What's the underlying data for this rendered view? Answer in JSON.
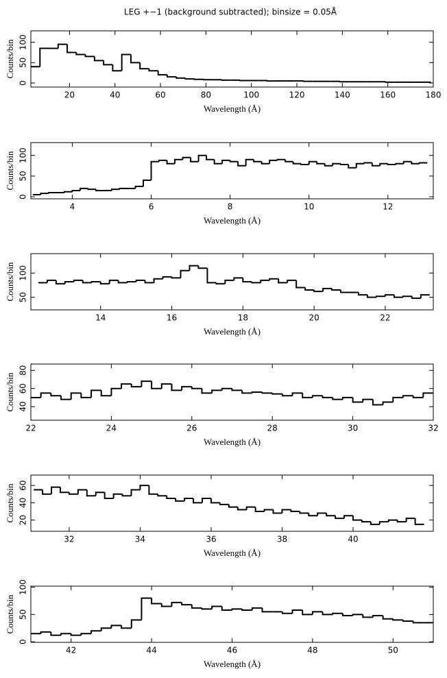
{
  "title": "LEG +−1 (background subtracted); binsize = 0.05Å",
  "chart_data": [
    {
      "type": "histogram",
      "xlabel": "Wavelength (Å)",
      "ylabel": "Counts/bin",
      "color": "#000000",
      "xlim": [
        3,
        180
      ],
      "ylim": [
        -10,
        128
      ],
      "xticks": [
        20,
        40,
        60,
        80,
        100,
        120,
        140,
        160,
        180
      ],
      "yticks": [
        0,
        50,
        100
      ],
      "bins": [
        3,
        7,
        11,
        15,
        19,
        23,
        27,
        31,
        35,
        39,
        43,
        47,
        51,
        55,
        59,
        63,
        67,
        71,
        75,
        79,
        83,
        87,
        91,
        95,
        99,
        103,
        107,
        111,
        115,
        119,
        123,
        127,
        131,
        135,
        139,
        143,
        147,
        151,
        155,
        159,
        163,
        167,
        171,
        175,
        179
      ],
      "values": [
        40,
        85,
        85,
        95,
        75,
        70,
        65,
        55,
        45,
        30,
        70,
        50,
        35,
        30,
        20,
        15,
        12,
        10,
        9,
        8,
        8,
        7,
        7,
        6,
        6,
        6,
        5,
        5,
        5,
        5,
        4,
        4,
        4,
        4,
        3,
        3,
        3,
        3,
        3,
        2,
        2,
        2,
        2,
        2
      ]
    },
    {
      "type": "histogram",
      "xlabel": "Wavelength (Å)",
      "ylabel": "Counts/bin",
      "color": "#000000",
      "xlim": [
        2.95,
        13.15
      ],
      "ylim": [
        -5,
        131
      ],
      "xticks": [
        4,
        6,
        8,
        10,
        12
      ],
      "yticks": [
        0,
        50,
        100
      ],
      "bins": [
        3,
        3.2,
        3.4,
        3.6,
        3.8,
        4,
        4.2,
        4.4,
        4.6,
        4.8,
        5,
        5.2,
        5.4,
        5.6,
        5.8,
        6,
        6.2,
        6.4,
        6.6,
        6.8,
        7,
        7.2,
        7.4,
        7.6,
        7.8,
        8,
        8.2,
        8.4,
        8.6,
        8.8,
        9,
        9.2,
        9.4,
        9.6,
        9.8,
        10,
        10.2,
        10.4,
        10.6,
        10.8,
        11,
        11.2,
        11.4,
        11.6,
        11.8,
        12,
        12.2,
        12.4,
        12.6,
        12.8,
        13
      ],
      "values": [
        5,
        8,
        10,
        10,
        12,
        15,
        20,
        18,
        15,
        15,
        18,
        20,
        20,
        25,
        40,
        85,
        88,
        80,
        90,
        95,
        85,
        100,
        90,
        80,
        88,
        85,
        75,
        90,
        85,
        80,
        88,
        90,
        85,
        80,
        78,
        85,
        80,
        75,
        80,
        78,
        70,
        80,
        82,
        75,
        80,
        78,
        80,
        85,
        80,
        82
      ]
    },
    {
      "type": "histogram",
      "xlabel": "Wavelength (Å)",
      "ylabel": "Counts/bin",
      "color": "#000000",
      "xlim": [
        12.04,
        23.35
      ],
      "ylim": [
        24,
        140
      ],
      "xticks": [
        14,
        16,
        18,
        20,
        22
      ],
      "yticks": [
        50,
        100
      ],
      "bins": [
        12.25,
        12.5,
        12.75,
        13,
        13.25,
        13.5,
        13.75,
        14,
        14.25,
        14.5,
        14.75,
        15,
        15.25,
        15.5,
        15.75,
        16,
        16.25,
        16.5,
        16.75,
        17,
        17.25,
        17.5,
        17.75,
        18,
        18.25,
        18.5,
        18.75,
        19,
        19.25,
        19.5,
        19.75,
        20,
        20.25,
        20.5,
        20.75,
        21,
        21.25,
        21.5,
        21.75,
        22,
        22.25,
        22.5,
        22.75,
        23,
        23.25
      ],
      "values": [
        80,
        85,
        78,
        82,
        85,
        80,
        82,
        78,
        85,
        80,
        82,
        85,
        80,
        88,
        92,
        90,
        105,
        115,
        110,
        80,
        78,
        85,
        90,
        82,
        80,
        85,
        88,
        80,
        85,
        70,
        65,
        62,
        68,
        65,
        60,
        60,
        55,
        50,
        52,
        55,
        50,
        52,
        48,
        55
      ]
    },
    {
      "type": "histogram",
      "xlabel": "Wavelength (Å)",
      "ylabel": "Counts/bin",
      "color": "#000000",
      "xlim": [
        22,
        32
      ],
      "ylim": [
        25,
        87
      ],
      "xticks": [
        22,
        24,
        26,
        28,
        30,
        32
      ],
      "yticks": [
        40,
        60,
        80
      ],
      "bins": [
        22,
        22.25,
        22.5,
        22.75,
        23,
        23.25,
        23.5,
        23.75,
        24,
        24.25,
        24.5,
        24.75,
        25,
        25.25,
        25.5,
        25.75,
        26,
        26.25,
        26.5,
        26.75,
        27,
        27.25,
        27.5,
        27.75,
        28,
        28.25,
        28.5,
        28.75,
        29,
        29.25,
        29.5,
        29.75,
        30,
        30.25,
        30.5,
        30.75,
        31,
        31.25,
        31.5,
        31.75,
        32
      ],
      "values": [
        50,
        55,
        52,
        48,
        55,
        50,
        58,
        52,
        60,
        65,
        62,
        68,
        60,
        65,
        58,
        62,
        60,
        55,
        58,
        60,
        58,
        55,
        56,
        55,
        54,
        52,
        55,
        50,
        52,
        50,
        48,
        50,
        45,
        48,
        42,
        45,
        50,
        52,
        50,
        55
      ]
    },
    {
      "type": "histogram",
      "xlabel": "Wavelength (Å)",
      "ylabel": "Counts/bin",
      "color": "#000000",
      "xlim": [
        30.92,
        42.26
      ],
      "ylim": [
        7,
        72
      ],
      "xticks": [
        32,
        34,
        36,
        38,
        40
      ],
      "yticks": [
        20,
        40,
        60
      ],
      "bins": [
        31,
        31.25,
        31.5,
        31.75,
        32,
        32.25,
        32.5,
        32.75,
        33,
        33.25,
        33.5,
        33.75,
        34,
        34.25,
        34.5,
        34.75,
        35,
        35.25,
        35.5,
        35.75,
        36,
        36.25,
        36.5,
        36.75,
        37,
        37.25,
        37.5,
        37.75,
        38,
        38.25,
        38.5,
        38.75,
        39,
        39.25,
        39.5,
        39.75,
        40,
        40.25,
        40.5,
        40.75,
        41,
        41.25,
        41.5,
        41.75,
        42
      ],
      "values": [
        55,
        50,
        58,
        52,
        50,
        55,
        48,
        52,
        45,
        50,
        48,
        55,
        60,
        50,
        48,
        45,
        42,
        45,
        40,
        45,
        40,
        38,
        35,
        32,
        35,
        30,
        32,
        28,
        32,
        30,
        28,
        25,
        28,
        25,
        22,
        25,
        20,
        18,
        15,
        18,
        20,
        18,
        22,
        15
      ]
    },
    {
      "type": "histogram",
      "xlabel": "Wavelength (Å)",
      "ylabel": "Counts/bin",
      "color": "#000000",
      "xlim": [
        41,
        51
      ],
      "ylim": [
        -1,
        102
      ],
      "xticks": [
        42,
        44,
        46,
        48,
        50
      ],
      "yticks": [
        0,
        50,
        100
      ],
      "bins": [
        41,
        41.25,
        41.5,
        41.75,
        42,
        42.25,
        42.5,
        42.75,
        43,
        43.25,
        43.5,
        43.75,
        44,
        44.25,
        44.5,
        44.75,
        45,
        45.25,
        45.5,
        45.75,
        46,
        46.25,
        46.5,
        46.75,
        47,
        47.25,
        47.5,
        47.75,
        48,
        48.25,
        48.5,
        48.75,
        49,
        49.25,
        49.5,
        49.75,
        50,
        50.25,
        50.5,
        50.75,
        51
      ],
      "values": [
        15,
        18,
        12,
        15,
        12,
        15,
        20,
        25,
        30,
        25,
        40,
        80,
        70,
        65,
        72,
        68,
        62,
        60,
        65,
        58,
        60,
        58,
        62,
        55,
        55,
        52,
        58,
        50,
        55,
        50,
        52,
        48,
        50,
        45,
        48,
        42,
        40,
        38,
        35,
        35
      ]
    }
  ]
}
